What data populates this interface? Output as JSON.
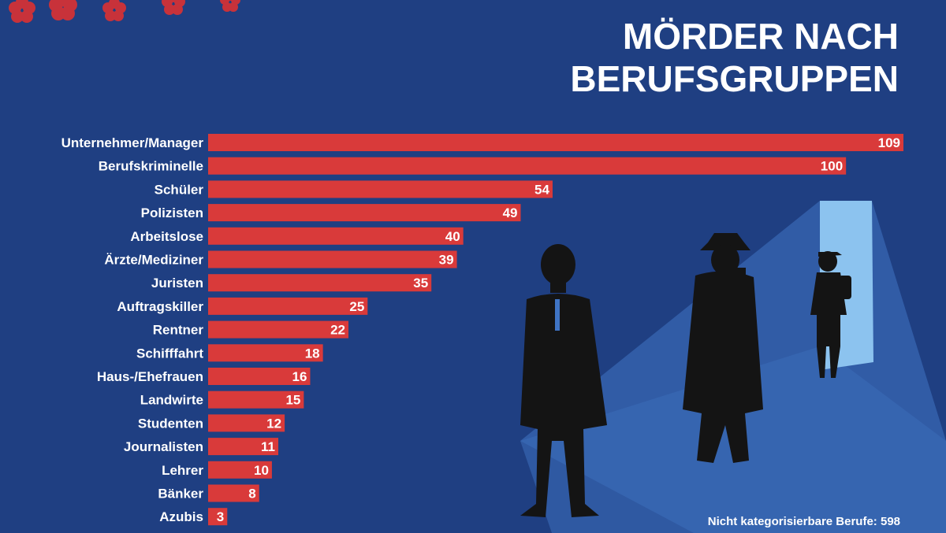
{
  "chart_data": {
    "type": "bar",
    "orientation": "horizontal",
    "title": [
      "MÖRDER NACH",
      "BERUFSGRUPPEN"
    ],
    "categories": [
      "Unternehmer/Manager",
      "Berufskriminelle",
      "Schüler",
      "Polizisten",
      "Arbeitslose",
      "Ärzte/Mediziner",
      "Juristen",
      "Auftragskiller",
      "Rentner",
      "Schifffahrt",
      "Haus-/Ehefrauen",
      "Landwirte",
      "Studenten",
      "Journalisten",
      "Lehrer",
      "Bänker",
      "Azubis"
    ],
    "values": [
      109,
      100,
      54,
      49,
      40,
      39,
      35,
      25,
      22,
      18,
      16,
      15,
      12,
      11,
      10,
      8,
      3
    ],
    "xlim": [
      0,
      109
    ],
    "grid": false,
    "legend": "none",
    "footnote": "Nicht kategorisierbare Berufe: 598"
  },
  "colors": {
    "background": "#1f3f82",
    "bar": "#d93a3a",
    "text": "#ffffff",
    "blossom": "#c8323a",
    "light_beam": "#3f74c4",
    "doorway": "#8cc3ef",
    "silhouette": "#141414"
  },
  "illustration": {
    "icons": [
      "cherry-blossom-icon",
      "businessman-silhouette-icon",
      "detective-with-gun-silhouette-icon",
      "schoolboy-silhouette-icon"
    ]
  }
}
